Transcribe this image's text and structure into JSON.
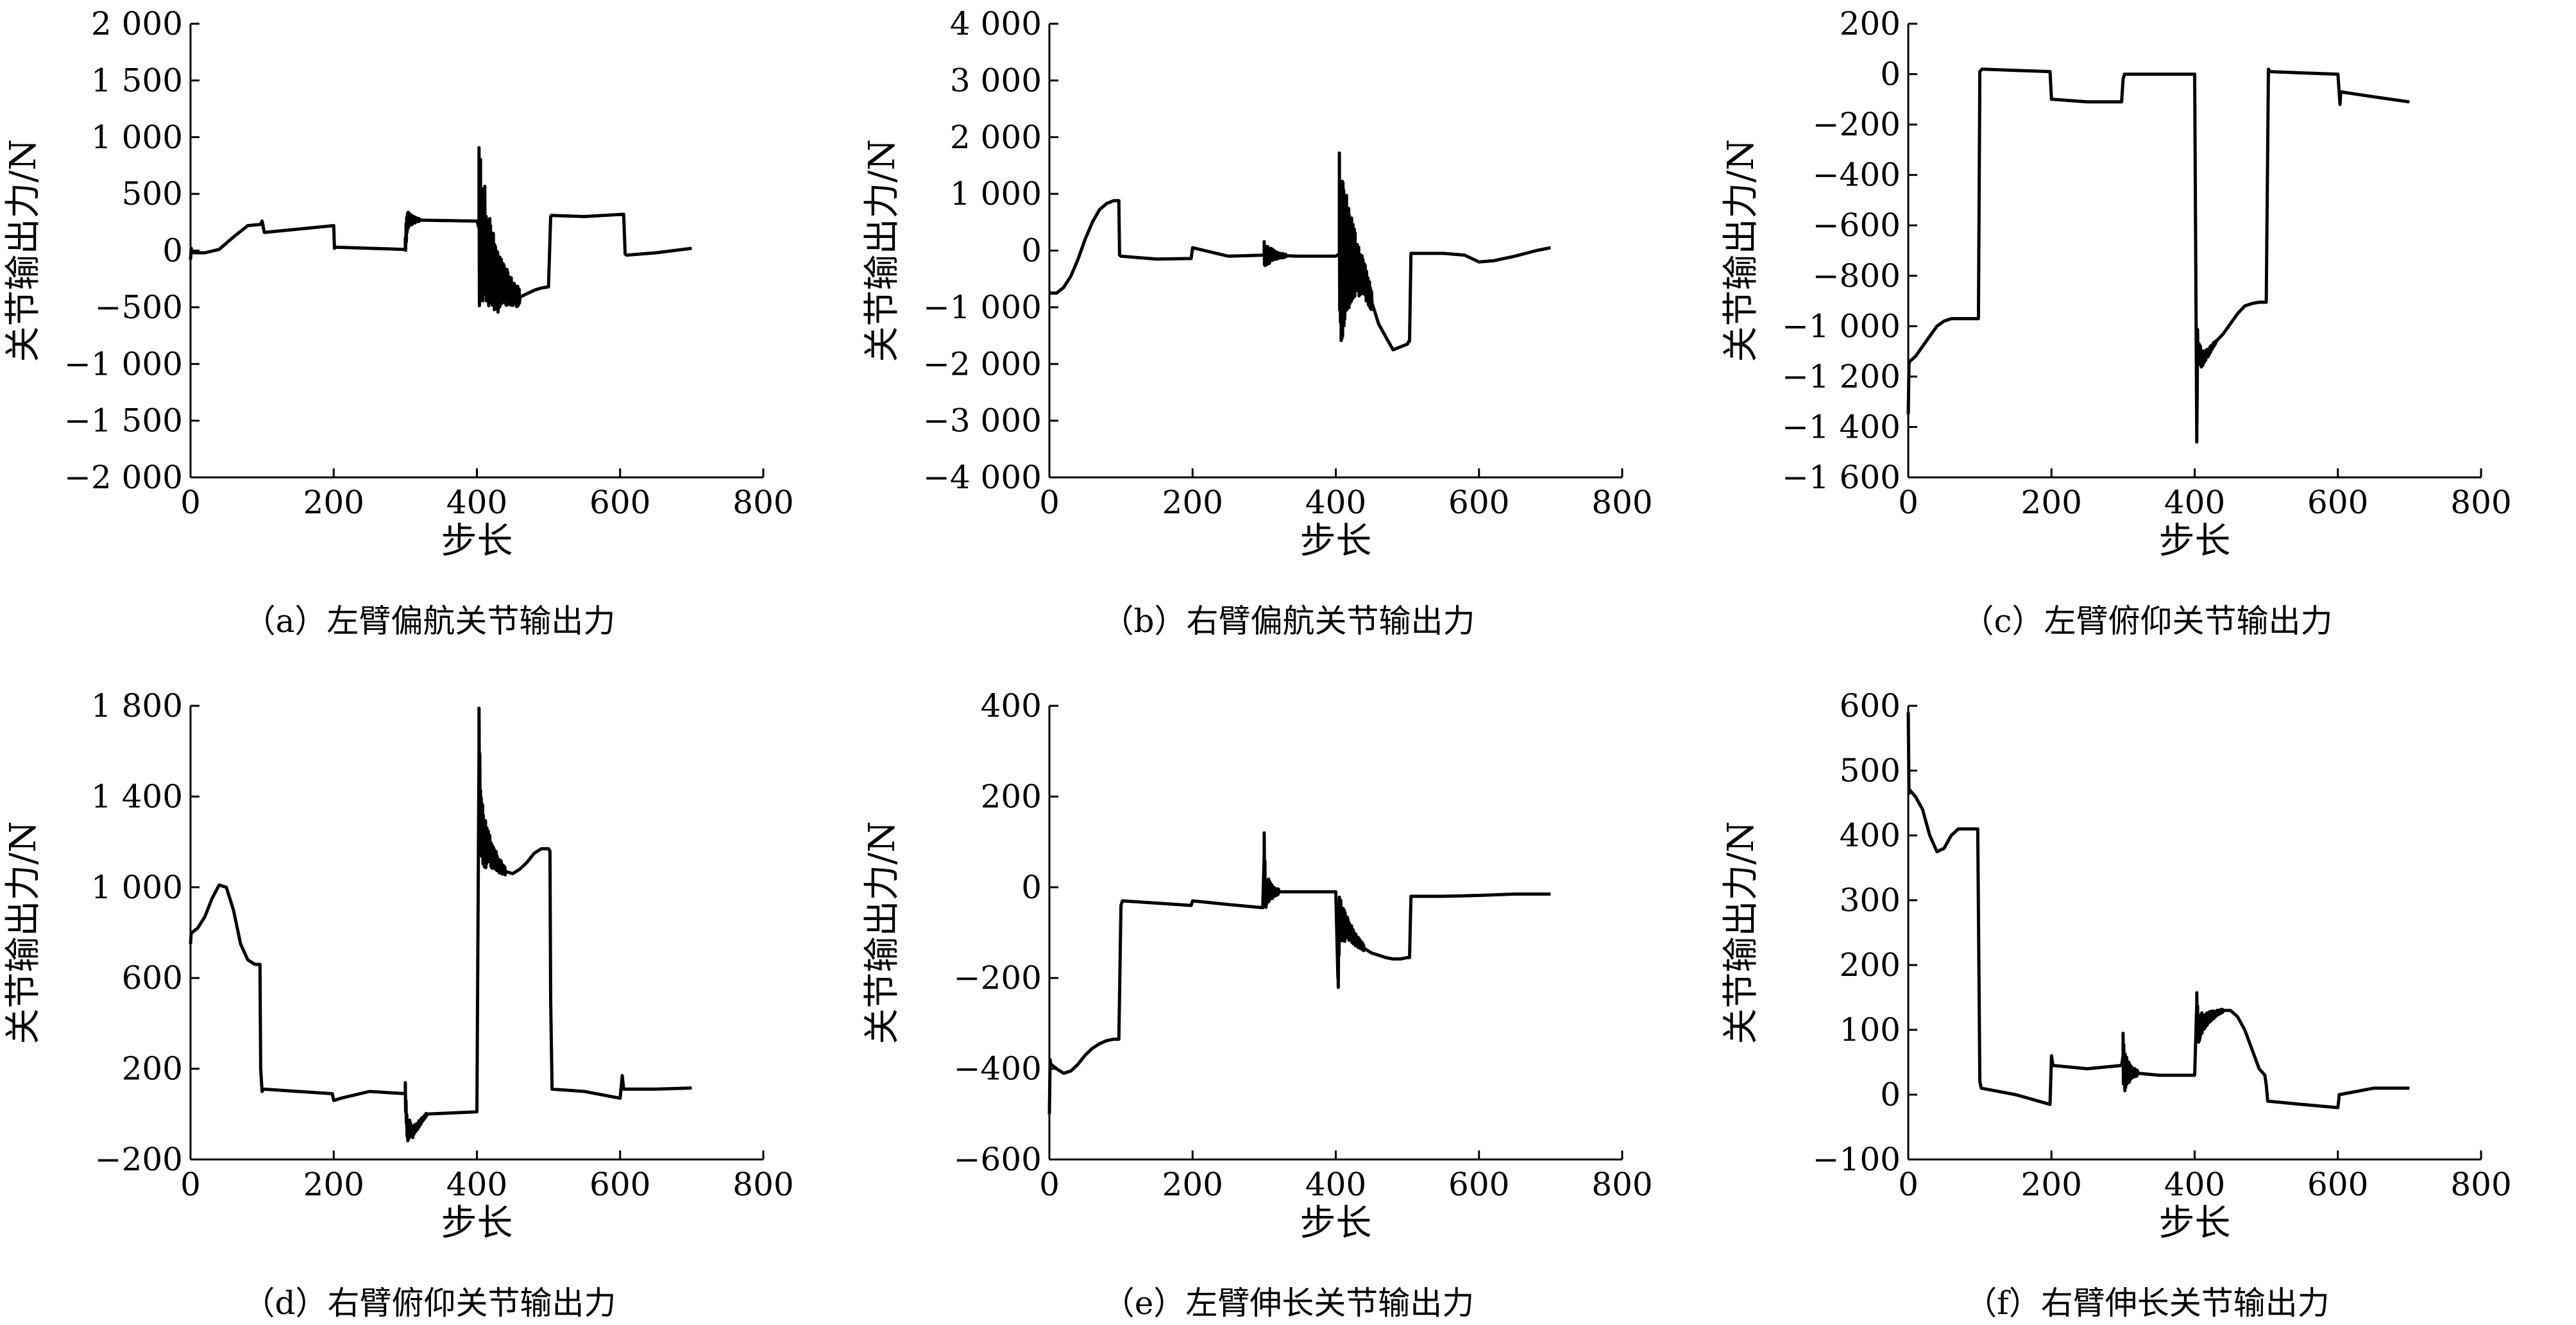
{
  "chart_data": [
    {
      "type": "line",
      "caption": "（a）左臂偏航关节输出力",
      "xlabel": "步长",
      "ylabel": "关节输出力/N",
      "xlim": [
        0,
        800
      ],
      "ylim": [
        -2000,
        2000
      ],
      "xticks": [
        0,
        200,
        400,
        600,
        800
      ],
      "yticks": [
        -2000,
        -1500,
        -1000,
        -500,
        0,
        500,
        1000,
        1500,
        2000
      ],
      "xtick_labels": [
        "0",
        "200",
        "400",
        "600",
        "800"
      ],
      "ytick_labels": [
        "−2 000",
        "−1 500",
        "−1 000",
        "−500",
        "0",
        "500",
        "1 000",
        "1 500",
        "2 000"
      ],
      "grid": false,
      "series": [
        {
          "x": [
            0,
            1,
            2,
            20,
            40,
            60,
            80,
            98,
            100,
            101,
            103,
            200,
            201,
            203,
            300,
            301,
            303,
            400,
            403,
            410,
            420,
            430,
            440,
            450,
            460,
            470,
            480,
            490,
            500,
            503,
            504,
            550,
            605,
            607,
            609,
            650,
            700
          ],
          "y": [
            -80,
            20,
            -20,
            -20,
            10,
            120,
            220,
            230,
            260,
            230,
            160,
            220,
            20,
            30,
            10,
            150,
            270,
            260,
            200,
            50,
            -150,
            -280,
            -320,
            -380,
            -410,
            -380,
            -350,
            -330,
            -320,
            300,
            310,
            300,
            320,
            -30,
            -40,
            -20,
            20
          ],
          "oscillations": [
            {
              "start": 300,
              "end": 320,
              "amplitude": 120
            },
            {
              "start": 403,
              "end": 460,
              "amplitude": 750
            }
          ]
        }
      ]
    },
    {
      "type": "line",
      "caption": "（b）右臂偏航关节输出力",
      "xlabel": "步长",
      "ylabel": "关节输出力/N",
      "xlim": [
        0,
        800
      ],
      "ylim": [
        -4000,
        4000
      ],
      "xticks": [
        0,
        200,
        400,
        600,
        800
      ],
      "yticks": [
        -4000,
        -3000,
        -2000,
        -1000,
        0,
        1000,
        2000,
        3000,
        4000
      ],
      "xtick_labels": [
        "0",
        "200",
        "400",
        "600",
        "800"
      ],
      "ytick_labels": [
        "−4 000",
        "−3 000",
        "−2 000",
        "−1 000",
        "0",
        "1 000",
        "2 000",
        "3 000",
        "4 000"
      ],
      "grid": false,
      "series": [
        {
          "x": [
            0,
            10,
            20,
            30,
            40,
            50,
            60,
            70,
            80,
            90,
            97,
            98,
            100,
            150,
            198,
            200,
            250,
            300,
            350,
            400,
            405,
            420,
            440,
            460,
            480,
            500,
            502,
            503,
            505,
            550,
            580,
            600,
            620,
            650,
            680,
            700
          ],
          "y": [
            -750,
            -750,
            -650,
            -450,
            -150,
            200,
            500,
            720,
            830,
            880,
            880,
            -80,
            -100,
            -150,
            -140,
            50,
            -100,
            -80,
            -100,
            -100,
            -60,
            -100,
            -500,
            -1300,
            -1750,
            -1650,
            -1600,
            -1600,
            -50,
            -50,
            -80,
            -200,
            -180,
            -100,
            0,
            50
          ],
          "oscillations": [
            {
              "start": 300,
              "end": 330,
              "amplitude": 250
            },
            {
              "start": 405,
              "end": 450,
              "amplitude": 1800
            }
          ]
        }
      ]
    },
    {
      "type": "line",
      "caption": "（c）左臂俯仰关节输出力",
      "xlabel": "步长",
      "ylabel": "关节输出力/N",
      "xlim": [
        0,
        800
      ],
      "ylim": [
        -1600,
        200
      ],
      "xticks": [
        0,
        200,
        400,
        600,
        800
      ],
      "yticks": [
        -1600,
        -1400,
        -1200,
        -1000,
        -800,
        -600,
        -400,
        -200,
        0,
        200
      ],
      "xtick_labels": [
        "0",
        "200",
        "400",
        "600",
        "800"
      ],
      "ytick_labels": [
        "−1 600",
        "−1 400",
        "−1 200",
        "−1 000",
        "−800",
        "−600",
        "−400",
        "−200",
        "0",
        "200"
      ],
      "grid": false,
      "series": [
        {
          "x": [
            0,
            1,
            2,
            10,
            20,
            30,
            40,
            50,
            60,
            70,
            80,
            98,
            100,
            103,
            150,
            198,
            200,
            202,
            250,
            298,
            300,
            302,
            350,
            400,
            403,
            404,
            405,
            410,
            420,
            430,
            440,
            450,
            460,
            470,
            480,
            490,
            500,
            503,
            505,
            550,
            600,
            603,
            604,
            650,
            700
          ],
          "y": [
            -1350,
            -1150,
            -1140,
            -1120,
            -1080,
            -1040,
            -1000,
            -980,
            -970,
            -970,
            -970,
            -970,
            10,
            20,
            15,
            10,
            -100,
            -100,
            -110,
            -110,
            -20,
            0,
            0,
            0,
            -1460,
            -1050,
            -1100,
            -1130,
            -1100,
            -1060,
            -1030,
            -990,
            -950,
            -920,
            -910,
            -905,
            -905,
            20,
            10,
            5,
            0,
            -120,
            -70,
            -90,
            -110
          ],
          "oscillations": [
            {
              "start": 403,
              "end": 430,
              "amplitude": 60
            }
          ]
        }
      ]
    },
    {
      "type": "line",
      "caption": "（d）右臂俯仰关节输出力",
      "xlabel": "步长",
      "ylabel": "关节输出力/N",
      "xlim": [
        0,
        800
      ],
      "ylim": [
        -200,
        1800
      ],
      "xticks": [
        0,
        200,
        400,
        600,
        800
      ],
      "yticks": [
        -200,
        200,
        600,
        1000,
        1400,
        1800
      ],
      "xtick_labels": [
        "0",
        "200",
        "400",
        "600",
        "800"
      ],
      "ytick_labels": [
        "−200",
        "200",
        "600",
        "1 000",
        "1 400",
        "1 800"
      ],
      "grid": false,
      "series": [
        {
          "x": [
            0,
            1,
            2,
            10,
            20,
            30,
            40,
            50,
            60,
            70,
            80,
            90,
            97,
            98,
            100,
            102,
            150,
            198,
            200,
            210,
            250,
            300,
            303,
            305,
            310,
            330,
            400,
            403,
            405,
            410,
            420,
            430,
            440,
            450,
            460,
            470,
            480,
            490,
            500,
            502,
            503,
            505,
            550,
            600,
            603,
            605,
            650,
            700
          ],
          "y": [
            750,
            800,
            800,
            820,
            870,
            950,
            1010,
            1000,
            900,
            750,
            680,
            660,
            660,
            200,
            100,
            110,
            100,
            90,
            60,
            70,
            100,
            90,
            -100,
            -60,
            -80,
            0,
            10,
            1620,
            1300,
            1200,
            1150,
            1100,
            1070,
            1060,
            1080,
            1110,
            1150,
            1170,
            1170,
            1160,
            500,
            110,
            100,
            70,
            170,
            110,
            110,
            115
          ],
          "oscillations": [
            {
              "start": 300,
              "end": 330,
              "amplitude": 60
            },
            {
              "start": 403,
              "end": 440,
              "amplitude": 180
            }
          ]
        }
      ]
    },
    {
      "type": "line",
      "caption": "（e）左臂伸长关节输出力",
      "xlabel": "步长",
      "ylabel": "关节输出力/N",
      "xlim": [
        0,
        800
      ],
      "ylim": [
        -600,
        400
      ],
      "xticks": [
        0,
        200,
        400,
        600,
        800
      ],
      "yticks": [
        -600,
        -400,
        -200,
        0,
        200,
        400
      ],
      "xtick_labels": [
        "0",
        "200",
        "400",
        "600",
        "800"
      ],
      "ytick_labels": [
        "−600",
        "−400",
        "−200",
        "0",
        "200",
        "400"
      ],
      "grid": false,
      "series": [
        {
          "x": [
            0,
            1,
            2,
            10,
            20,
            30,
            40,
            50,
            60,
            70,
            80,
            90,
            97,
            100,
            102,
            150,
            198,
            200,
            250,
            298,
            300,
            302,
            350,
            400,
            403,
            405,
            410,
            420,
            430,
            440,
            450,
            460,
            470,
            480,
            490,
            500,
            503,
            505,
            550,
            600,
            650,
            700
          ],
          "y": [
            -500,
            -380,
            -390,
            -400,
            -410,
            -405,
            -390,
            -370,
            -355,
            -345,
            -338,
            -335,
            -335,
            -40,
            -30,
            -35,
            -40,
            -30,
            -38,
            -45,
            70,
            -10,
            -10,
            -10,
            -200,
            -70,
            -80,
            -100,
            -120,
            -135,
            -145,
            -150,
            -155,
            -158,
            -158,
            -155,
            -155,
            -20,
            -20,
            -18,
            -15,
            -15
          ],
          "oscillations": [
            {
              "start": 300,
              "end": 320,
              "amplitude": 55
            },
            {
              "start": 403,
              "end": 440,
              "amplitude": 60
            }
          ]
        }
      ]
    },
    {
      "type": "line",
      "caption": "（f）右臂伸长关节输出力",
      "xlabel": "步长",
      "ylabel": "关节输出力/N",
      "xlim": [
        0,
        800
      ],
      "ylim": [
        -100,
        600
      ],
      "xticks": [
        0,
        200,
        400,
        600,
        800
      ],
      "yticks": [
        -100,
        0,
        100,
        200,
        300,
        400,
        500,
        600
      ],
      "xtick_labels": [
        "0",
        "200",
        "400",
        "600",
        "800"
      ],
      "ytick_labels": [
        "−100",
        "0",
        "100",
        "200",
        "300",
        "400",
        "500",
        "600"
      ],
      "grid": false,
      "series": [
        {
          "x": [
            0,
            1,
            2,
            10,
            20,
            30,
            40,
            50,
            60,
            70,
            80,
            90,
            97,
            100,
            102,
            150,
            198,
            200,
            202,
            250,
            298,
            300,
            302,
            350,
            400,
            403,
            405,
            410,
            420,
            430,
            440,
            450,
            460,
            470,
            480,
            490,
            498,
            500,
            502,
            550,
            600,
            602,
            650,
            700
          ],
          "y": [
            590,
            465,
            470,
            460,
            440,
            400,
            375,
            380,
            400,
            410,
            410,
            410,
            410,
            20,
            10,
            0,
            -15,
            60,
            45,
            40,
            45,
            60,
            35,
            30,
            30,
            140,
            100,
            110,
            120,
            125,
            130,
            130,
            120,
            100,
            70,
            40,
            30,
            15,
            -10,
            -15,
            -20,
            0,
            10,
            10
          ],
          "oscillations": [
            {
              "start": 300,
              "end": 320,
              "amplitude": 40
            },
            {
              "start": 403,
              "end": 440,
              "amplitude": 25
            }
          ]
        }
      ]
    }
  ]
}
